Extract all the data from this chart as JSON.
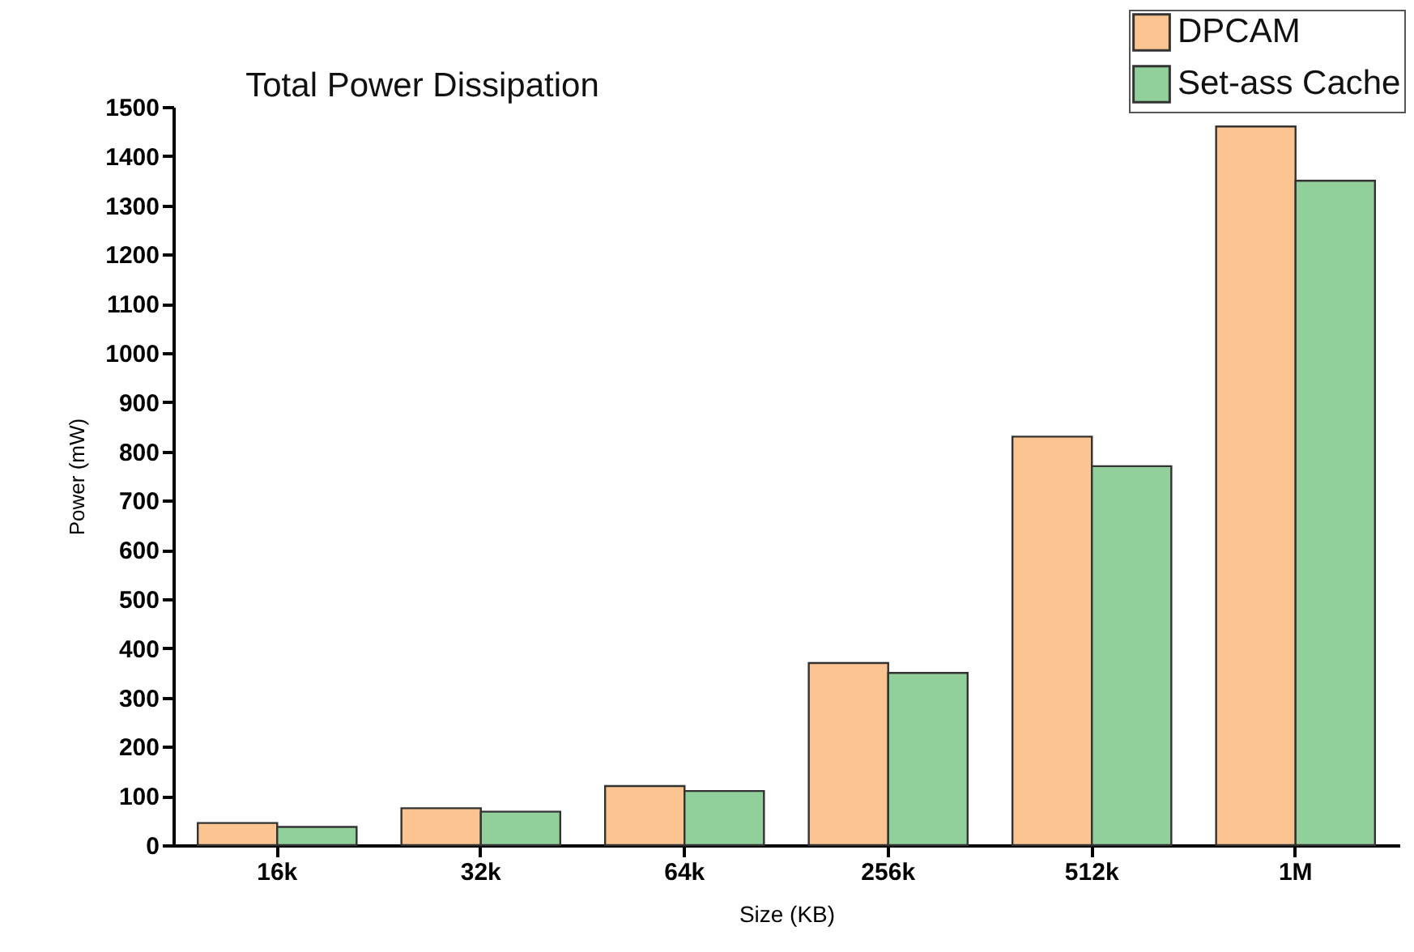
{
  "chart_data": {
    "type": "bar",
    "title": "Total Power Dissipation",
    "xlabel": "Size (KB)",
    "ylabel": "Power (mW)",
    "categories": [
      "16k",
      "32k",
      "64k",
      "256k",
      "512k",
      "1M"
    ],
    "series": [
      {
        "name": "DPCAM",
        "color": "#fcc490",
        "values": [
          45,
          75,
          120,
          370,
          830,
          1460
        ]
      },
      {
        "name": "Set-ass Cache",
        "color": "#92d09b",
        "values": [
          37,
          68,
          110,
          350,
          770,
          1350
        ]
      }
    ],
    "ylim": [
      0,
      1500
    ],
    "yticks": [
      0,
      100,
      200,
      300,
      400,
      500,
      600,
      700,
      800,
      900,
      1000,
      1100,
      1200,
      1300,
      1400,
      1500
    ],
    "grid": false,
    "legend": "top right"
  }
}
